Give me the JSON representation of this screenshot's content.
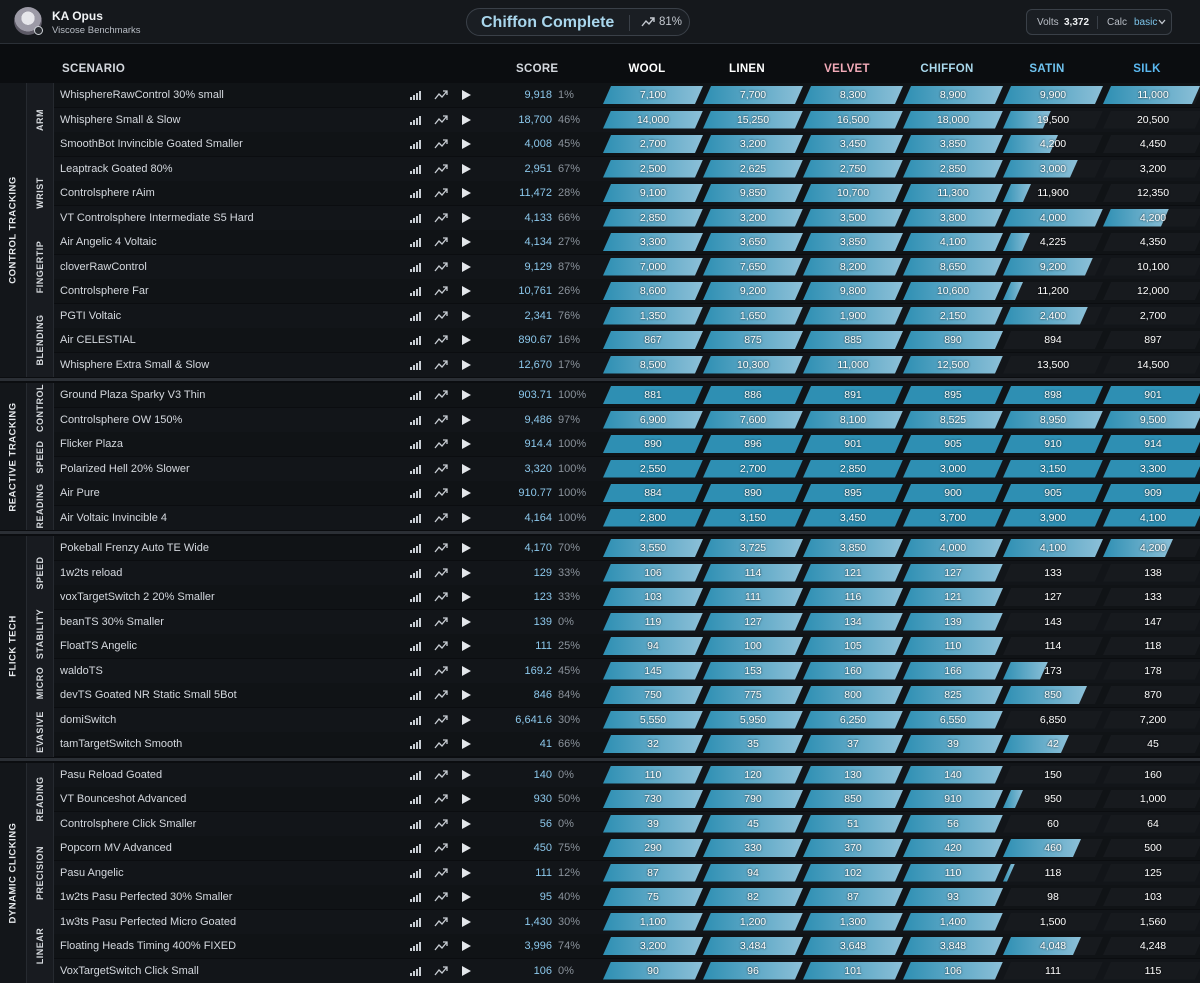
{
  "header": {
    "user_name": "KA Opus",
    "user_subtitle": "Viscose Benchmarks",
    "title": "Chiffon Complete",
    "title_icon": "trend-up-icon",
    "title_percent": "81%",
    "volts_label": "Volts",
    "volts_value": "3,372",
    "calc_label": "Calc",
    "calc_value": "basic"
  },
  "columns": {
    "scenario": "SCENARIO",
    "score": "SCORE",
    "ranks": [
      "WOOL",
      "LINEN",
      "VELVET",
      "CHIFFON",
      "SATIN",
      "SILK"
    ]
  },
  "colors": {
    "rank_headers": [
      "#ffffff",
      "#ffffff",
      "#f2aab8",
      "#a9d8ec",
      "#6fc3ef",
      "#5ab8f0"
    ],
    "fill_light": "#8cc0d8",
    "fill_dark": "#2e8fb3",
    "score_text": "#8cc8ec"
  },
  "categories": [
    {
      "name": "CONTROL TRACKING",
      "subcategories": [
        {
          "name": "ARM",
          "rows": [
            {
              "scenario": "WhisphereRawControl 30% small",
              "score": "9,918",
              "percent": "1%",
              "progress": 0.97,
              "thresholds": [
                "7,100",
                "7,700",
                "8,300",
                "8,900",
                "9,900",
                "11,000"
              ]
            },
            {
              "scenario": "Whisphere Small & Slow",
              "score": "18,700",
              "percent": "46%",
              "progress": 0.48,
              "thresholds": [
                "14,000",
                "15,250",
                "16,500",
                "18,000",
                "19,500",
                "20,500"
              ]
            },
            {
              "scenario": "SmoothBot Invincible Goated Smaller",
              "score": "4,008",
              "percent": "45%",
              "progress": 0.55,
              "thresholds": [
                "2,700",
                "3,200",
                "3,450",
                "3,850",
                "4,200",
                "4,450"
              ]
            }
          ]
        },
        {
          "name": "WRIST",
          "rows": [
            {
              "scenario": "Leaptrack Goated 80%",
              "score": "2,951",
              "percent": "67%",
              "progress": 0.75,
              "thresholds": [
                "2,500",
                "2,625",
                "2,750",
                "2,850",
                "3,000",
                "3,200"
              ]
            },
            {
              "scenario": "Controlsphere rAim",
              "score": "11,472",
              "percent": "28%",
              "progress": 0.28,
              "thresholds": [
                "9,100",
                "9,850",
                "10,700",
                "11,300",
                "11,900",
                "12,350"
              ]
            },
            {
              "scenario": "VT Controlsphere Intermediate S5 Hard",
              "score": "4,133",
              "percent": "66%",
              "progress": 0.66,
              "thresholds": [
                "2,850",
                "3,200",
                "3,500",
                "3,800",
                "4,000",
                "4,200"
              ]
            }
          ]
        },
        {
          "name": "FINGERTIP",
          "rows": [
            {
              "scenario": "Air Angelic 4 Voltaic",
              "score": "4,134",
              "percent": "27%",
              "progress": 0.27,
              "thresholds": [
                "3,300",
                "3,650",
                "3,850",
                "4,100",
                "4,225",
                "4,350"
              ]
            },
            {
              "scenario": "cloverRawControl",
              "score": "9,129",
              "percent": "87%",
              "progress": 0.9,
              "thresholds": [
                "7,000",
                "7,650",
                "8,200",
                "8,650",
                "9,200",
                "10,100"
              ]
            },
            {
              "scenario": "Controlsphere Far",
              "score": "10,761",
              "percent": "26%",
              "progress": 0.2,
              "thresholds": [
                "8,600",
                "9,200",
                "9,800",
                "10,600",
                "11,200",
                "12,000"
              ]
            }
          ]
        },
        {
          "name": "BLENDING",
          "rows": [
            {
              "scenario": "PGTI Voltaic",
              "score": "2,341",
              "percent": "76%",
              "progress": 0.85,
              "thresholds": [
                "1,350",
                "1,650",
                "1,900",
                "2,150",
                "2,400",
                "2,700"
              ]
            },
            {
              "scenario": "Air CELESTIAL",
              "score": "890.67",
              "percent": "16%",
              "progress": 0.0,
              "thresholds": [
                "867",
                "875",
                "885",
                "890",
                "894",
                "897"
              ]
            },
            {
              "scenario": "Whisphere Extra Small & Slow",
              "score": "12,670",
              "percent": "17%",
              "progress": 0.0,
              "thresholds": [
                "8,500",
                "10,300",
                "11,000",
                "12,500",
                "13,500",
                "14,500"
              ]
            }
          ]
        }
      ]
    },
    {
      "name": "REACTIVE TRACKING",
      "subcategories": [
        {
          "name": "CONTROL",
          "rows": [
            {
              "scenario": "Ground Plaza Sparky V3 Thin",
              "score": "903.71",
              "percent": "100%",
              "progress": 1.0,
              "thresholds": [
                "881",
                "886",
                "891",
                "895",
                "898",
                "901"
              ]
            },
            {
              "scenario": "Controlsphere OW 150%",
              "score": "9,486",
              "percent": "97%",
              "progress": 1.0,
              "thresholds": [
                "6,900",
                "7,600",
                "8,100",
                "8,525",
                "8,950",
                "9,500"
              ]
            }
          ]
        },
        {
          "name": "SPEED",
          "rows": [
            {
              "scenario": "Flicker Plaza",
              "score": "914.4",
              "percent": "100%",
              "progress": 1.0,
              "thresholds": [
                "890",
                "896",
                "901",
                "905",
                "910",
                "914"
              ]
            },
            {
              "scenario": "Polarized Hell 20% Slower",
              "score": "3,320",
              "percent": "100%",
              "progress": 1.0,
              "thresholds": [
                "2,550",
                "2,700",
                "2,850",
                "3,000",
                "3,150",
                "3,300"
              ]
            }
          ]
        },
        {
          "name": "READING",
          "rows": [
            {
              "scenario": "Air Pure",
              "score": "910.77",
              "percent": "100%",
              "progress": 1.0,
              "thresholds": [
                "884",
                "890",
                "895",
                "900",
                "905",
                "909"
              ]
            },
            {
              "scenario": "Air Voltaic Invincible 4",
              "score": "4,164",
              "percent": "100%",
              "progress": 1.0,
              "thresholds": [
                "2,800",
                "3,150",
                "3,450",
                "3,700",
                "3,900",
                "4,100"
              ]
            }
          ]
        }
      ]
    },
    {
      "name": "FLICK TECH",
      "subcategories": [
        {
          "name": "SPEED",
          "rows": [
            {
              "scenario": "Pokeball Frenzy Auto TE Wide",
              "score": "4,170",
              "percent": "70%",
              "progress": 0.7,
              "thresholds": [
                "3,550",
                "3,725",
                "3,850",
                "4,000",
                "4,100",
                "4,200"
              ]
            },
            {
              "scenario": "1w2ts reload",
              "score": "129",
              "percent": "33%",
              "progress": 0.0,
              "thresholds": [
                "106",
                "114",
                "121",
                "127",
                "133",
                "138"
              ]
            },
            {
              "scenario": "voxTargetSwitch 2 20% Smaller",
              "score": "123",
              "percent": "33%",
              "progress": 0.0,
              "thresholds": [
                "103",
                "111",
                "116",
                "121",
                "127",
                "133"
              ]
            }
          ]
        },
        {
          "name": "STABILITY",
          "rows": [
            {
              "scenario": "beanTS 30% Smaller",
              "score": "139",
              "percent": "0%",
              "progress": 0.0,
              "thresholds": [
                "119",
                "127",
                "134",
                "139",
                "143",
                "147"
              ]
            },
            {
              "scenario": "FloatTS Angelic",
              "score": "111",
              "percent": "25%",
              "progress": 0.0,
              "thresholds": [
                "94",
                "100",
                "105",
                "110",
                "114",
                "118"
              ]
            }
          ]
        },
        {
          "name": "MICRO",
          "rows": [
            {
              "scenario": "waldoTS",
              "score": "169.2",
              "percent": "45%",
              "progress": 0.45,
              "thresholds": [
                "145",
                "153",
                "160",
                "166",
                "173",
                "178"
              ]
            },
            {
              "scenario": "devTS Goated NR Static Small 5Bot",
              "score": "846",
              "percent": "84%",
              "progress": 0.84,
              "thresholds": [
                "750",
                "775",
                "800",
                "825",
                "850",
                "870"
              ]
            }
          ]
        },
        {
          "name": "EVASIVE",
          "rows": [
            {
              "scenario": "domiSwitch",
              "score": "6,641.6",
              "percent": "30%",
              "progress": 0.0,
              "thresholds": [
                "5,550",
                "5,950",
                "6,250",
                "6,550",
                "6,850",
                "7,200"
              ]
            },
            {
              "scenario": "tamTargetSwitch Smooth",
              "score": "41",
              "percent": "66%",
              "progress": 0.66,
              "thresholds": [
                "32",
                "35",
                "37",
                "39",
                "42",
                "45"
              ]
            }
          ]
        }
      ]
    },
    {
      "name": "DYNAMIC CLICKING",
      "subcategories": [
        {
          "name": "READING",
          "rows": [
            {
              "scenario": "Pasu Reload Goated",
              "score": "140",
              "percent": "0%",
              "progress": 0.0,
              "thresholds": [
                "110",
                "120",
                "130",
                "140",
                "150",
                "160"
              ]
            },
            {
              "scenario": "VT Bounceshot Advanced",
              "score": "930",
              "percent": "50%",
              "progress": 0.2,
              "thresholds": [
                "730",
                "790",
                "850",
                "910",
                "950",
                "1,000"
              ]
            },
            {
              "scenario": "Controlsphere Click Smaller",
              "score": "56",
              "percent": "0%",
              "progress": 0.0,
              "thresholds": [
                "39",
                "45",
                "51",
                "56",
                "60",
                "64"
              ]
            }
          ]
        },
        {
          "name": "PRECISION",
          "rows": [
            {
              "scenario": "Popcorn MV Advanced",
              "score": "450",
              "percent": "75%",
              "progress": 0.78,
              "thresholds": [
                "290",
                "330",
                "370",
                "420",
                "460",
                "500"
              ]
            },
            {
              "scenario": "Pasu Angelic",
              "score": "111",
              "percent": "12%",
              "progress": 0.12,
              "thresholds": [
                "87",
                "94",
                "102",
                "110",
                "118",
                "125"
              ]
            },
            {
              "scenario": "1w2ts Pasu Perfected 30% Smaller",
              "score": "95",
              "percent": "40%",
              "progress": 0.0,
              "thresholds": [
                "75",
                "82",
                "87",
                "93",
                "98",
                "103"
              ]
            }
          ]
        },
        {
          "name": "LINEAR",
          "rows": [
            {
              "scenario": "1w3ts Pasu Perfected Micro Goated",
              "score": "1,430",
              "percent": "30%",
              "progress": 0.0,
              "thresholds": [
                "1,100",
                "1,200",
                "1,300",
                "1,400",
                "1,500",
                "1,560"
              ]
            },
            {
              "scenario": "Floating Heads Timing 400% FIXED",
              "score": "3,996",
              "percent": "74%",
              "progress": 0.78,
              "thresholds": [
                "3,200",
                "3,484",
                "3,648",
                "3,848",
                "4,048",
                "4,248"
              ]
            },
            {
              "scenario": "VoxTargetSwitch Click Small",
              "score": "106",
              "percent": "0%",
              "progress": 0.0,
              "thresholds": [
                "90",
                "96",
                "101",
                "106",
                "111",
                "115"
              ]
            }
          ]
        }
      ]
    }
  ]
}
